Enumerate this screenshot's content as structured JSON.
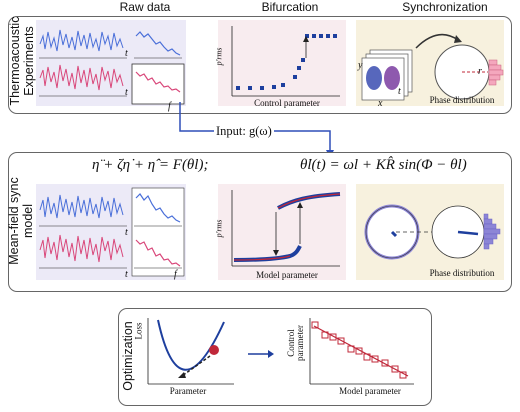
{
  "headers": {
    "raw_data": "Raw data",
    "bifurcation": "Bifurcation",
    "synchronization": "Synchronization"
  },
  "panels": {
    "experiments": {
      "label_line1": "Thermoacoustic",
      "label_line2": "Experiments",
      "bif_xlabel": "Control parameter",
      "bif_ylabel": "p'rms",
      "phase_caption": "Phase distribution"
    },
    "model": {
      "label_line1": "Mean-field sync",
      "label_line2": "model",
      "equation_left": "η̈ + ζη̇ + η̂ = F(θl);",
      "equation_right": "θ̇l(t) = ωl + KR̂ sin(Φ − θl)",
      "bif_xlabel": "Model parameter",
      "bif_ylabel": "p'rms",
      "phase_caption": "Phase distribution"
    },
    "optimization": {
      "label": "Optimization",
      "loss_ylabel": "Loss",
      "loss_xlabel": "Parameter",
      "corr_ylabel_line1": "Control",
      "corr_ylabel_line2": "parameter",
      "corr_xlabel": "Model parameter"
    }
  },
  "input_label": "Input: g(ω)",
  "axis_symbols": {
    "t": "t",
    "f": "f",
    "x": "x",
    "y": "y",
    "r": "r"
  },
  "colors": {
    "blue": "#4a6fd9",
    "pink": "#d9477a",
    "navy": "#1a2c8a",
    "marker_blue": "#1e3f9e",
    "lilac_bg": "#eceaf7",
    "pink_bg": "#f8ecef",
    "cream_bg": "#f7f1de",
    "crimson": "#c0283a"
  }
}
